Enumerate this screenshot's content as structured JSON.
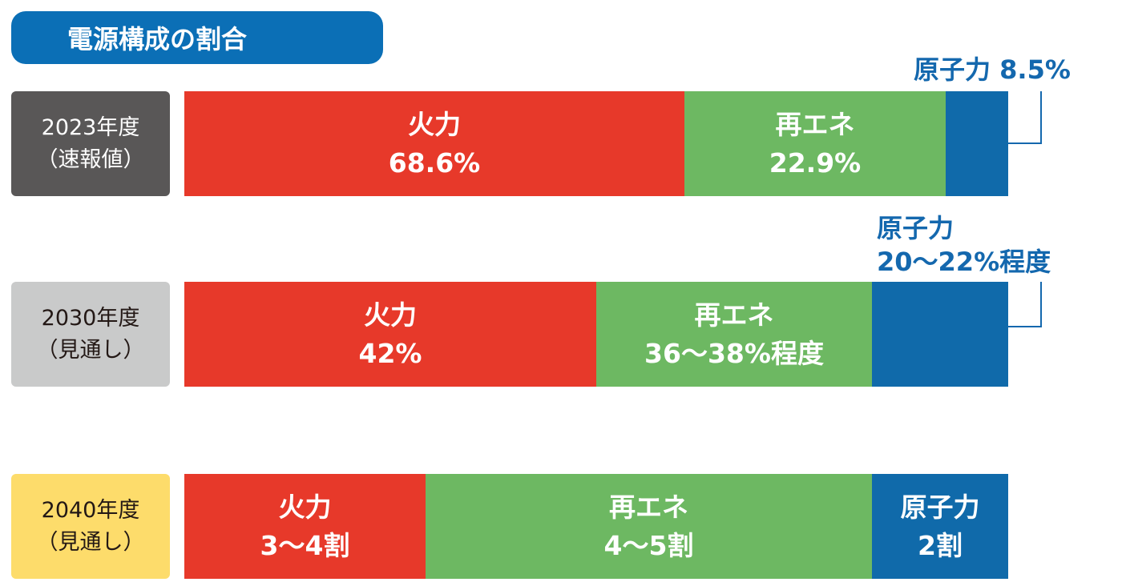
{
  "title": "電源構成の割合",
  "rows": [
    {
      "year": "2023年度",
      "note": "（速報値）",
      "segments": [
        {
          "name": "火力",
          "share": "68.6%"
        },
        {
          "name": "再エネ",
          "share": "22.9%"
        },
        {
          "name": "原子力",
          "share": "8.5%"
        }
      ]
    },
    {
      "year": "2030年度",
      "note": "（見通し）",
      "segments": [
        {
          "name": "火力",
          "share": "42%"
        },
        {
          "name": "再エネ",
          "share": "36〜38%程度"
        },
        {
          "name": "原子力",
          "share": "20〜22%程度"
        }
      ]
    },
    {
      "year": "2040年度",
      "note": "（見通し）",
      "segments": [
        {
          "name": "火力",
          "share": "3〜4割"
        },
        {
          "name": "再エネ",
          "share": "4〜5割"
        },
        {
          "name": "原子力",
          "share": "2割"
        }
      ]
    }
  ]
}
